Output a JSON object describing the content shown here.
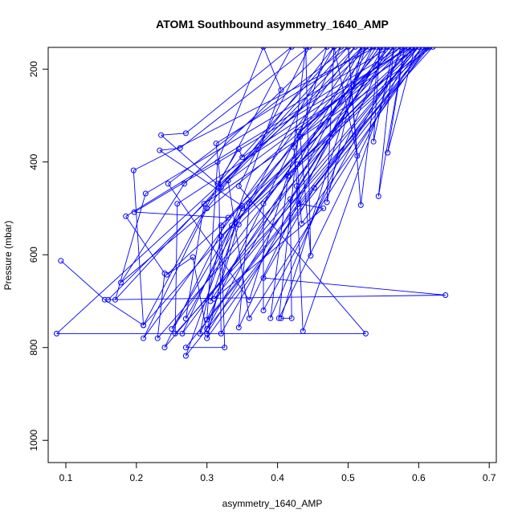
{
  "chart_data": {
    "type": "scatter",
    "title": "ATOM1 Southbound asymmetry_1640_AMP",
    "xlabel": "asymmetry_1640_AMP",
    "ylabel": "Pressure (mbar)",
    "xlim": [
      0.075,
      0.71
    ],
    "ylim": [
      1048,
      153
    ],
    "y_reversed": true,
    "x_ticks": [
      0.1,
      0.2,
      0.3,
      0.4,
      0.5,
      0.6,
      0.7
    ],
    "y_ticks": [
      200,
      400,
      600,
      800,
      1000
    ],
    "grid": false,
    "legend": "none",
    "color": "#0000ff",
    "series": [
      {
        "points": [
          [
            0.093,
            613
          ],
          [
            0.155,
            697
          ],
          [
            0.21,
            752
          ],
          [
            0.42,
            152
          ],
          [
            0.27,
            338
          ],
          [
            0.235,
            342
          ],
          [
            0.32,
            455
          ],
          [
            0.313,
            360
          ],
          [
            0.53,
            152
          ],
          [
            0.087,
            770
          ],
          [
            0.525,
            770
          ],
          [
            0.345,
            452
          ],
          [
            0.445,
            152
          ],
          [
            0.262,
            370
          ],
          [
            0.233,
            375
          ],
          [
            0.35,
            495
          ],
          [
            0.305,
            700
          ],
          [
            0.54,
            152
          ],
          [
            0.196,
            418
          ],
          [
            0.21,
            752
          ],
          [
            0.56,
            152
          ],
          [
            0.213,
            468
          ],
          [
            0.17,
            697
          ],
          [
            0.5,
            152
          ],
          [
            0.245,
            447
          ],
          [
            0.36,
            698
          ],
          [
            0.47,
            152
          ],
          [
            0.268,
            447
          ],
          [
            0.178,
            660
          ],
          [
            0.575,
            152
          ],
          [
            0.185,
            517
          ],
          [
            0.24,
            640
          ],
          [
            0.23,
            780
          ],
          [
            0.59,
            152
          ],
          [
            0.197,
            508
          ],
          [
            0.33,
            520
          ],
          [
            0.24,
            800
          ],
          [
            0.6,
            152
          ],
          [
            0.258,
            490
          ],
          [
            0.255,
            770
          ],
          [
            0.62,
            152
          ],
          [
            0.296,
            490
          ],
          [
            0.27,
            738
          ],
          [
            0.48,
            152
          ],
          [
            0.3,
            500
          ],
          [
            0.21,
            780
          ],
          [
            0.51,
            152
          ],
          [
            0.317,
            455
          ],
          [
            0.32,
            770
          ],
          [
            0.55,
            152
          ],
          [
            0.32,
            537
          ],
          [
            0.325,
            800
          ],
          [
            0.27,
            800
          ],
          [
            0.61,
            152
          ],
          [
            0.335,
            537
          ],
          [
            0.265,
            770
          ],
          [
            0.565,
            152
          ],
          [
            0.34,
            530
          ],
          [
            0.3,
            780
          ],
          [
            0.595,
            152
          ],
          [
            0.345,
            535
          ],
          [
            0.3,
            760
          ],
          [
            0.52,
            152
          ],
          [
            0.36,
            490
          ],
          [
            0.345,
            757
          ],
          [
            0.535,
            152
          ],
          [
            0.35,
            500
          ],
          [
            0.25,
            760
          ],
          [
            0.545,
            152
          ],
          [
            0.38,
            490
          ],
          [
            0.38,
            720
          ],
          [
            0.58,
            152
          ],
          [
            0.32,
            560
          ],
          [
            0.29,
            770
          ],
          [
            0.49,
            152
          ],
          [
            0.315,
            447
          ],
          [
            0.345,
            372
          ],
          [
            0.35,
            390
          ],
          [
            0.585,
            152
          ],
          [
            0.33,
            440
          ],
          [
            0.36,
            737
          ],
          [
            0.605,
            152
          ],
          [
            0.3,
            740
          ],
          [
            0.315,
            400
          ],
          [
            0.38,
            152
          ],
          [
            0.405,
            245
          ],
          [
            0.27,
            818
          ],
          [
            0.615,
            152
          ],
          [
            0.415,
            430
          ],
          [
            0.39,
            737
          ],
          [
            0.555,
            152
          ],
          [
            0.418,
            480
          ],
          [
            0.42,
            737
          ],
          [
            0.405,
            737
          ],
          [
            0.525,
            152
          ],
          [
            0.427,
            452
          ],
          [
            0.436,
            765
          ],
          [
            0.575,
            152
          ],
          [
            0.43,
            335
          ],
          [
            0.402,
            737
          ],
          [
            0.59,
            152
          ],
          [
            0.432,
            346
          ],
          [
            0.447,
            602
          ],
          [
            0.44,
            152
          ],
          [
            0.423,
            368
          ],
          [
            0.43,
            490
          ],
          [
            0.465,
            500
          ],
          [
            0.31,
            695
          ],
          [
            0.6,
            152
          ],
          [
            0.428,
            405
          ],
          [
            0.434,
            533
          ],
          [
            0.612,
            152
          ],
          [
            0.452,
            456
          ],
          [
            0.38,
            650
          ],
          [
            0.638,
            687
          ],
          [
            0.16,
            697
          ],
          [
            0.52,
            152
          ],
          [
            0.47,
            487
          ],
          [
            0.48,
            152
          ],
          [
            0.513,
            387
          ],
          [
            0.5,
            152
          ],
          [
            0.518,
            493
          ],
          [
            0.545,
            152
          ],
          [
            0.536,
            356
          ],
          [
            0.565,
            152
          ],
          [
            0.543,
            474
          ],
          [
            0.58,
            152
          ],
          [
            0.556,
            380
          ],
          [
            0.595,
            152
          ],
          [
            0.243,
            643
          ],
          [
            0.28,
            605
          ],
          [
            0.3,
            770
          ],
          [
            0.555,
            152
          ]
        ]
      }
    ]
  }
}
